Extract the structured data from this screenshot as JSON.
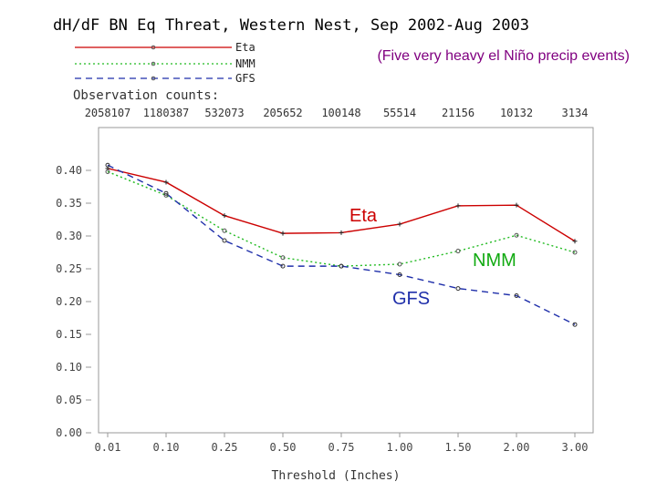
{
  "chart_data": {
    "type": "line",
    "title": "dH/dF BN Eq Threat, Western Nest, Sep 2002-Aug 2003",
    "subtitle": "(Five very heavy el Niño precip events)",
    "xlabel": "Threshold (Inches)",
    "ylabel": "",
    "categories": [
      "0.01",
      "0.10",
      "0.25",
      "0.50",
      "0.75",
      "1.00",
      "1.50",
      "2.00",
      "3.00"
    ],
    "y_ticks": [
      "0.00",
      "0.05",
      "0.10",
      "0.15",
      "0.20",
      "0.25",
      "0.30",
      "0.35",
      "0.40"
    ],
    "ylim": [
      0,
      0.45
    ],
    "observation_counts_label": "Observation counts:",
    "observation_counts": [
      "2058107",
      "1180387",
      "532073",
      "205652",
      "100148",
      "55514",
      "21156",
      "10132",
      "3134"
    ],
    "legend_placement": "top-left",
    "grid": false,
    "series": [
      {
        "name": "Eta",
        "color": "#cc0000",
        "dash": "solid",
        "values": [
          0.403,
          0.382,
          0.331,
          0.304,
          0.305,
          0.318,
          0.346,
          0.347,
          0.292
        ]
      },
      {
        "name": "NMM",
        "color": "#22bb22",
        "dash": "dot",
        "values": [
          0.398,
          0.362,
          0.308,
          0.267,
          0.254,
          0.257,
          0.277,
          0.301,
          0.275
        ]
      },
      {
        "name": "GFS",
        "color": "#1f2faa",
        "dash": "dash",
        "values": [
          0.408,
          0.365,
          0.293,
          0.254,
          0.254,
          0.241,
          0.22,
          0.209,
          0.165
        ]
      }
    ],
    "annotations": [
      {
        "text": "Eta",
        "color": "#cc0000"
      },
      {
        "text": "NMM",
        "color": "#11aa11"
      },
      {
        "text": "GFS",
        "color": "#1f2faa"
      }
    ]
  }
}
